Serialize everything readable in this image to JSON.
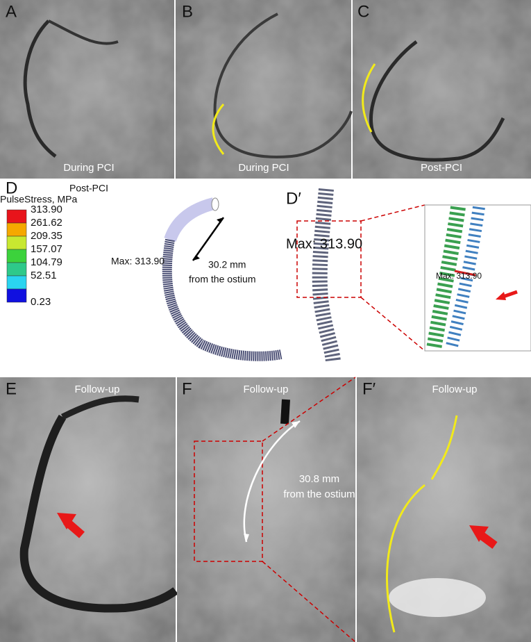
{
  "panels": {
    "A": {
      "label": "A",
      "caption": "During PCI"
    },
    "B": {
      "label": "B",
      "caption": "During PCI"
    },
    "C": {
      "label": "C",
      "caption": "Post-PCI"
    },
    "D": {
      "label": "D",
      "caption": "Post-PCI",
      "legend_title": "PulseStress, MPa",
      "legend": [
        "313.90",
        "261.62",
        "209.35",
        "157.07",
        "104.79",
        "52.51",
        "0.23"
      ],
      "legend_colors": [
        "#e8141b",
        "#f5a800",
        "#c8e830",
        "#3cd23c",
        "#2ec98a",
        "#2ad4f0",
        "#1010e0"
      ],
      "max_label": "Max: 313.90",
      "distance": "30.2 mm",
      "distance_note": "from the ostium"
    },
    "D2": {
      "label": "D′",
      "max_label": "Max: 313.90",
      "inset_max_label": "Max: 313.90"
    },
    "E": {
      "label": "E",
      "caption": "Follow-up"
    },
    "F": {
      "label": "F",
      "caption": "Follow-up",
      "distance": "30.8 mm",
      "distance_note": "from the ostium"
    },
    "F2": {
      "label": "F′",
      "caption": "Follow-up"
    }
  }
}
